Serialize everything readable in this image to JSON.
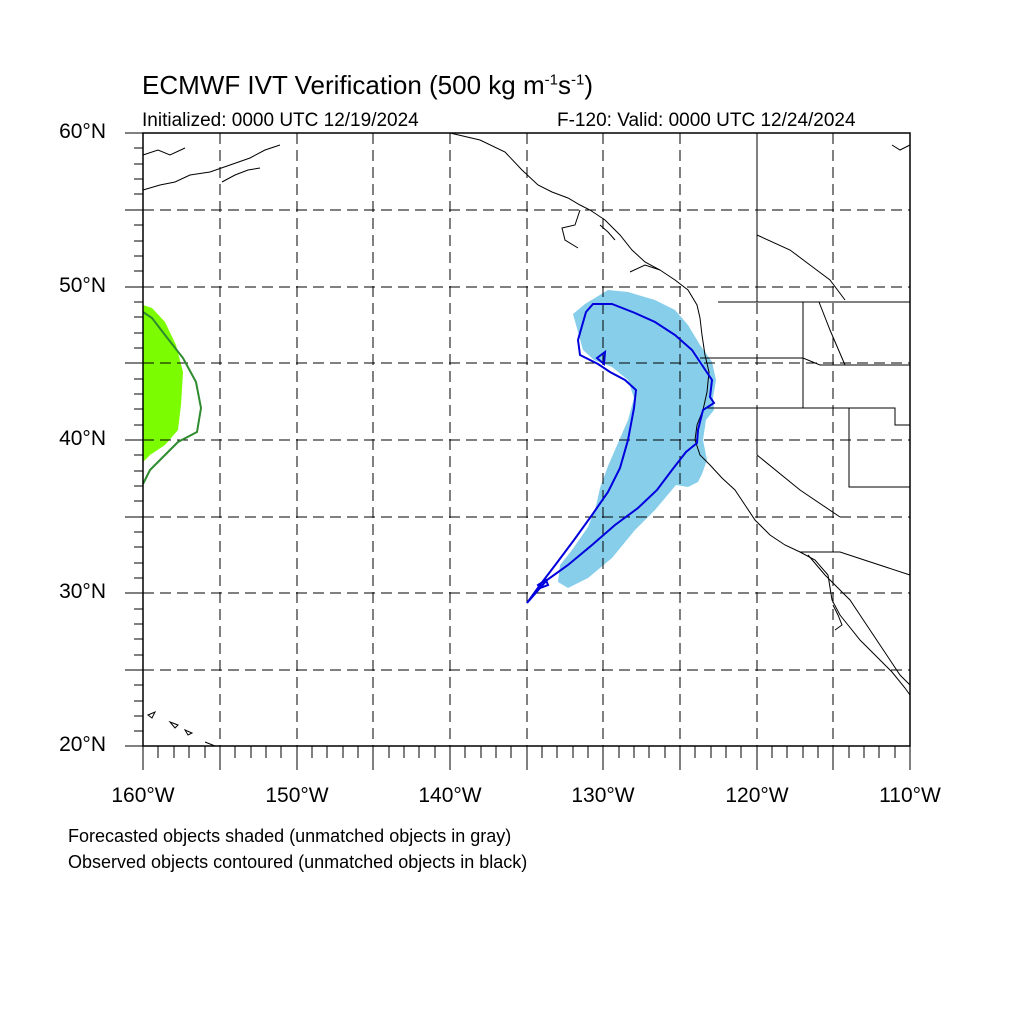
{
  "title": {
    "text": "ECMWF IVT Verification (500 kg m",
    "sup1": "-1",
    "mid": "s",
    "sup2": "-1",
    "end": ")"
  },
  "subtitle_left": "Initialized: 0000 UTC 12/19/2024",
  "subtitle_right": "F-120: Valid: 0000 UTC 12/24/2024",
  "map": {
    "lon_range": [
      -160,
      -110
    ],
    "lat_range": [
      20,
      60
    ],
    "grid_dashed": true,
    "lat_labels": [
      "60°N",
      "50°N",
      "40°N",
      "30°N",
      "20°N"
    ],
    "lon_labels": [
      "160°W",
      "150°W",
      "140°W",
      "130°W",
      "120°W",
      "110°W"
    ],
    "colors": {
      "forecast_matched": "#87ceeb",
      "observed_matched": "#0000dd",
      "forecast_green": "#7cfc00",
      "observed_green": "#2e8b2e"
    },
    "objects": [
      {
        "name": "forecast-object-blue",
        "type": "shaded",
        "color": "#87ceeb"
      },
      {
        "name": "observed-object-blue",
        "type": "contour",
        "color": "#0000dd"
      },
      {
        "name": "forecast-object-green",
        "type": "shaded",
        "color": "#7cfc00"
      },
      {
        "name": "observed-object-green",
        "type": "contour",
        "color": "#2e8b2e"
      }
    ]
  },
  "notes": [
    "Forecasted objects shaded (unmatched objects in gray)",
    "Observed objects contoured (unmatched objects in black)"
  ]
}
